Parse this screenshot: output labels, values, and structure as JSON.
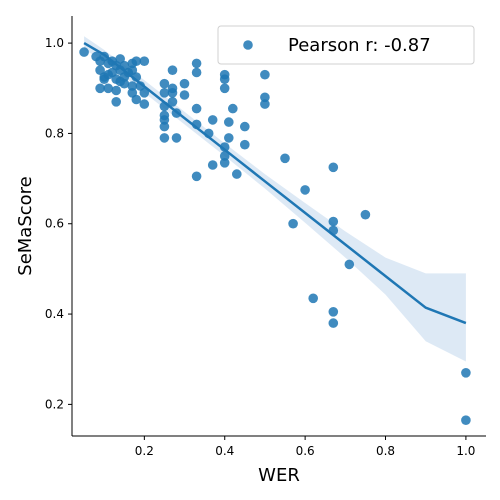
{
  "chart_data": {
    "type": "scatter",
    "title": "",
    "xlabel": "WER",
    "ylabel": "SeMaScore",
    "xlim": [
      0.02,
      1.05
    ],
    "ylim": [
      0.13,
      1.06
    ],
    "xticks": [
      0.2,
      0.4,
      0.6,
      0.8,
      1.0
    ],
    "xtick_labels": [
      "0.2",
      "0.4",
      "0.6",
      "0.8",
      "1.0"
    ],
    "yticks": [
      0.2,
      0.4,
      0.6,
      0.8,
      1.0
    ],
    "ytick_labels": [
      "0.2",
      "0.4",
      "0.6",
      "0.8",
      "1.0"
    ],
    "grid": false,
    "legend": {
      "position": "top-right",
      "label": "Pearson r: -0.87"
    },
    "color": "#1f77b4",
    "band_color": "#c6dbef",
    "regression": {
      "x": [
        0.05,
        0.1,
        0.2,
        0.3,
        0.4,
        0.5,
        0.6,
        0.7,
        0.8,
        0.9,
        1.0
      ],
      "y": [
        1.0,
        0.974,
        0.904,
        0.834,
        0.764,
        0.694,
        0.624,
        0.554,
        0.484,
        0.414,
        0.38
      ],
      "ci_upper": [
        1.015,
        0.985,
        0.918,
        0.848,
        0.778,
        0.71,
        0.646,
        0.583,
        0.525,
        0.49,
        0.49
      ],
      "ci_lower": [
        0.985,
        0.962,
        0.89,
        0.82,
        0.75,
        0.678,
        0.602,
        0.525,
        0.443,
        0.34,
        0.295
      ]
    },
    "points": [
      {
        "x": 0.05,
        "y": 0.98
      },
      {
        "x": 0.08,
        "y": 0.97
      },
      {
        "x": 0.09,
        "y": 0.96
      },
      {
        "x": 0.09,
        "y": 0.94
      },
      {
        "x": 0.09,
        "y": 0.9
      },
      {
        "x": 0.1,
        "y": 0.97
      },
      {
        "x": 0.1,
        "y": 0.925
      },
      {
        "x": 0.1,
        "y": 0.92
      },
      {
        "x": 0.11,
        "y": 0.955
      },
      {
        "x": 0.11,
        "y": 0.93
      },
      {
        "x": 0.11,
        "y": 0.9
      },
      {
        "x": 0.12,
        "y": 0.96
      },
      {
        "x": 0.12,
        "y": 0.935
      },
      {
        "x": 0.13,
        "y": 0.95
      },
      {
        "x": 0.13,
        "y": 0.92
      },
      {
        "x": 0.13,
        "y": 0.895
      },
      {
        "x": 0.13,
        "y": 0.87
      },
      {
        "x": 0.14,
        "y": 0.965
      },
      {
        "x": 0.14,
        "y": 0.94
      },
      {
        "x": 0.14,
        "y": 0.915
      },
      {
        "x": 0.15,
        "y": 0.95
      },
      {
        "x": 0.15,
        "y": 0.925
      },
      {
        "x": 0.15,
        "y": 0.91
      },
      {
        "x": 0.16,
        "y": 0.935
      },
      {
        "x": 0.17,
        "y": 0.955
      },
      {
        "x": 0.17,
        "y": 0.94
      },
      {
        "x": 0.17,
        "y": 0.905
      },
      {
        "x": 0.17,
        "y": 0.89
      },
      {
        "x": 0.18,
        "y": 0.96
      },
      {
        "x": 0.18,
        "y": 0.925
      },
      {
        "x": 0.18,
        "y": 0.875
      },
      {
        "x": 0.19,
        "y": 0.905
      },
      {
        "x": 0.2,
        "y": 0.96
      },
      {
        "x": 0.2,
        "y": 0.89
      },
      {
        "x": 0.2,
        "y": 0.865
      },
      {
        "x": 0.25,
        "y": 0.91
      },
      {
        "x": 0.25,
        "y": 0.89
      },
      {
        "x": 0.25,
        "y": 0.86
      },
      {
        "x": 0.25,
        "y": 0.84
      },
      {
        "x": 0.25,
        "y": 0.83
      },
      {
        "x": 0.25,
        "y": 0.815
      },
      {
        "x": 0.25,
        "y": 0.79
      },
      {
        "x": 0.27,
        "y": 0.94
      },
      {
        "x": 0.27,
        "y": 0.9
      },
      {
        "x": 0.27,
        "y": 0.89
      },
      {
        "x": 0.27,
        "y": 0.87
      },
      {
        "x": 0.28,
        "y": 0.79
      },
      {
        "x": 0.28,
        "y": 0.845
      },
      {
        "x": 0.3,
        "y": 0.91
      },
      {
        "x": 0.3,
        "y": 0.885
      },
      {
        "x": 0.33,
        "y": 0.955
      },
      {
        "x": 0.33,
        "y": 0.935
      },
      {
        "x": 0.33,
        "y": 0.855
      },
      {
        "x": 0.33,
        "y": 0.82
      },
      {
        "x": 0.33,
        "y": 0.705
      },
      {
        "x": 0.36,
        "y": 0.8
      },
      {
        "x": 0.37,
        "y": 0.83
      },
      {
        "x": 0.37,
        "y": 0.73
      },
      {
        "x": 0.4,
        "y": 0.93
      },
      {
        "x": 0.4,
        "y": 0.92
      },
      {
        "x": 0.4,
        "y": 0.9
      },
      {
        "x": 0.4,
        "y": 0.77
      },
      {
        "x": 0.4,
        "y": 0.75
      },
      {
        "x": 0.4,
        "y": 0.735
      },
      {
        "x": 0.41,
        "y": 0.825
      },
      {
        "x": 0.41,
        "y": 0.79
      },
      {
        "x": 0.42,
        "y": 0.855
      },
      {
        "x": 0.43,
        "y": 0.71
      },
      {
        "x": 0.45,
        "y": 0.815
      },
      {
        "x": 0.45,
        "y": 0.775
      },
      {
        "x": 0.5,
        "y": 0.93
      },
      {
        "x": 0.5,
        "y": 0.88
      },
      {
        "x": 0.5,
        "y": 0.865
      },
      {
        "x": 0.55,
        "y": 0.745
      },
      {
        "x": 0.57,
        "y": 0.6
      },
      {
        "x": 0.6,
        "y": 0.675
      },
      {
        "x": 0.62,
        "y": 0.435
      },
      {
        "x": 0.67,
        "y": 0.725
      },
      {
        "x": 0.67,
        "y": 0.605
      },
      {
        "x": 0.67,
        "y": 0.585
      },
      {
        "x": 0.67,
        "y": 0.405
      },
      {
        "x": 0.67,
        "y": 0.38
      },
      {
        "x": 0.71,
        "y": 0.51
      },
      {
        "x": 0.75,
        "y": 0.62
      },
      {
        "x": 1.0,
        "y": 0.27
      },
      {
        "x": 1.0,
        "y": 0.165
      }
    ]
  }
}
